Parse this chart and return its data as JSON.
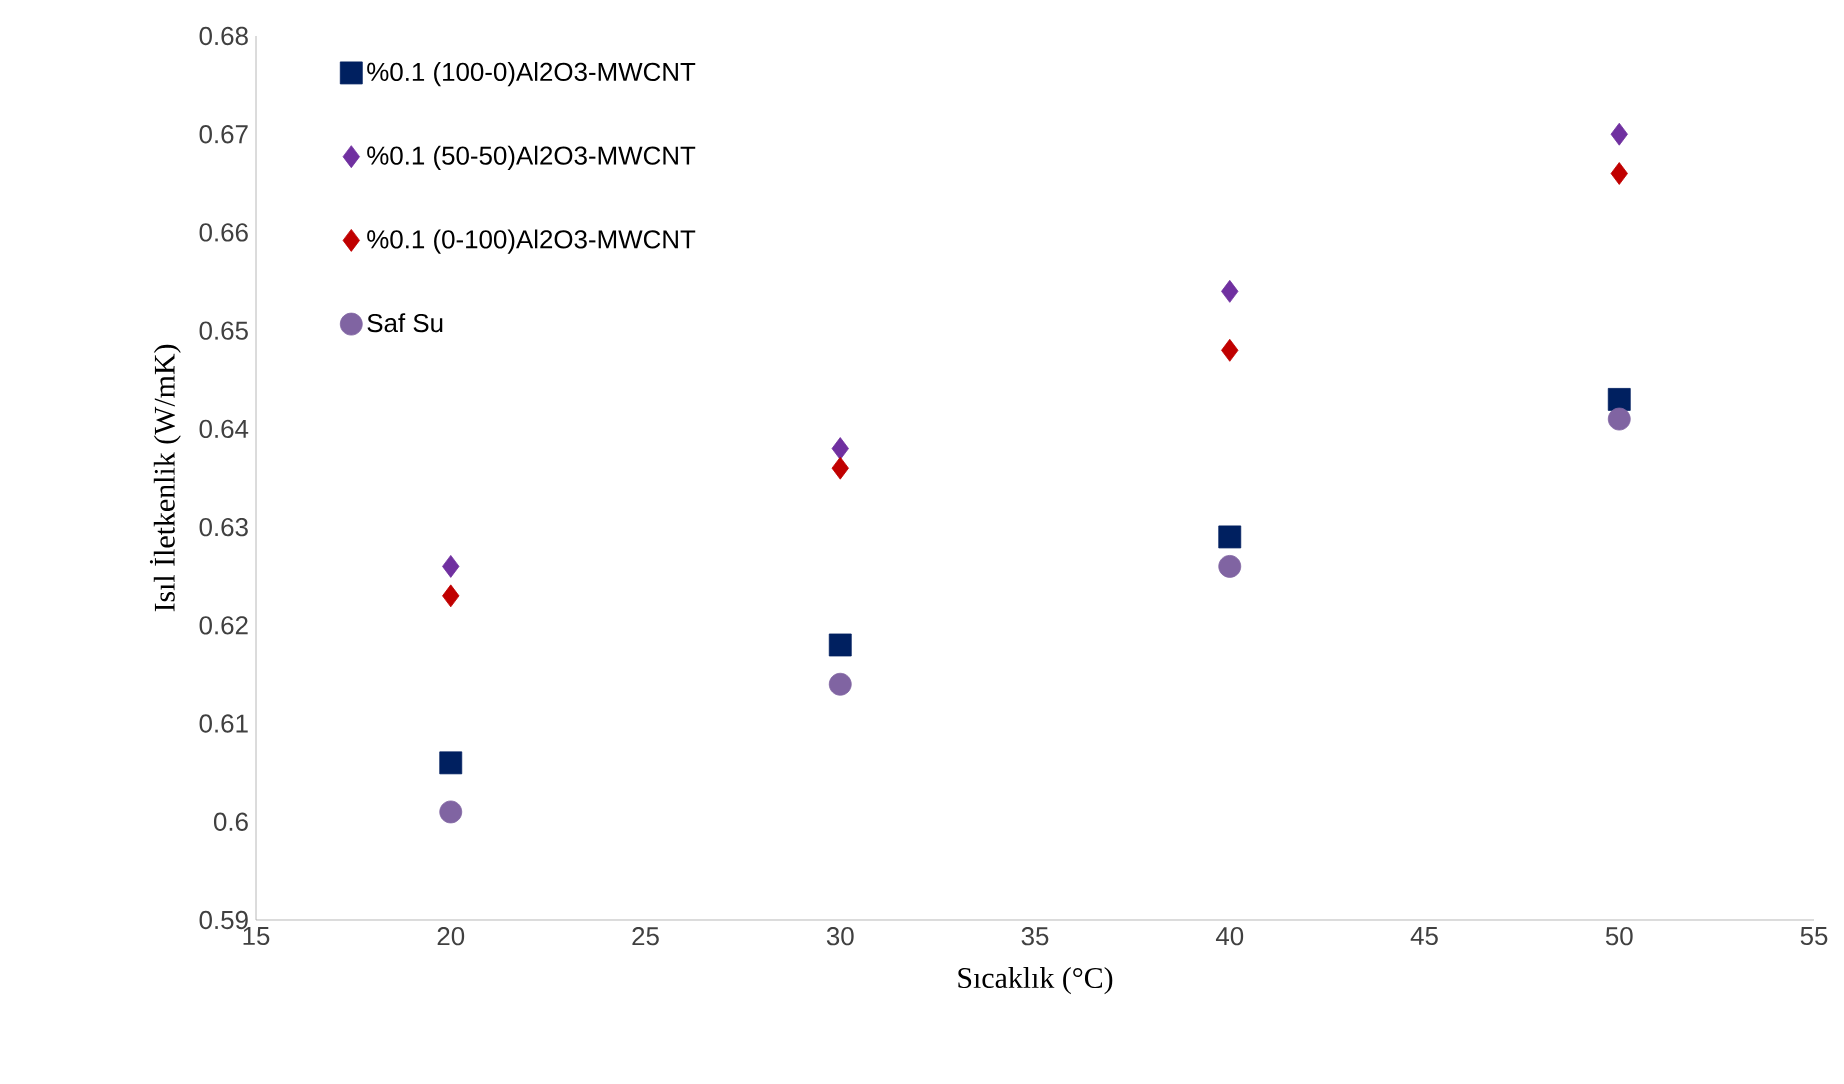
{
  "chart_data": {
    "type": "scatter",
    "xlabel": "Sıcaklık (°C)",
    "ylabel": "Isıl İletkenlik (W/mK)",
    "x": [
      20,
      30,
      40,
      50
    ],
    "series": [
      {
        "name": "%0.1 (100-0)Al2O3-MWCNT",
        "color": "#002060",
        "marker": "square",
        "values": [
          0.606,
          0.618,
          0.629,
          0.643
        ]
      },
      {
        "name": "%0.1 (50-50)Al2O3-MWCNT",
        "color": "#7030a0",
        "marker": "diamond",
        "values": [
          0.626,
          0.638,
          0.654,
          0.67
        ]
      },
      {
        "name": "%0.1 (0-100)Al2O3-MWCNT",
        "color": "#c00000",
        "marker": "diamond",
        "values": [
          0.623,
          0.636,
          0.648,
          0.666
        ]
      },
      {
        "name": "Saf Su",
        "color": "#8064a2",
        "marker": "circle",
        "values": [
          0.601,
          0.614,
          0.626,
          0.641
        ]
      }
    ],
    "xlim": [
      15,
      55
    ],
    "xticks": [
      15,
      20,
      25,
      30,
      35,
      40,
      45,
      50,
      55
    ],
    "ylim": [
      0.59,
      0.68
    ],
    "yticks": [
      0.59,
      0.6,
      0.61,
      0.62,
      0.63,
      0.64,
      0.65,
      0.66,
      0.67,
      0.68
    ],
    "grid": false,
    "legend": "top left"
  }
}
